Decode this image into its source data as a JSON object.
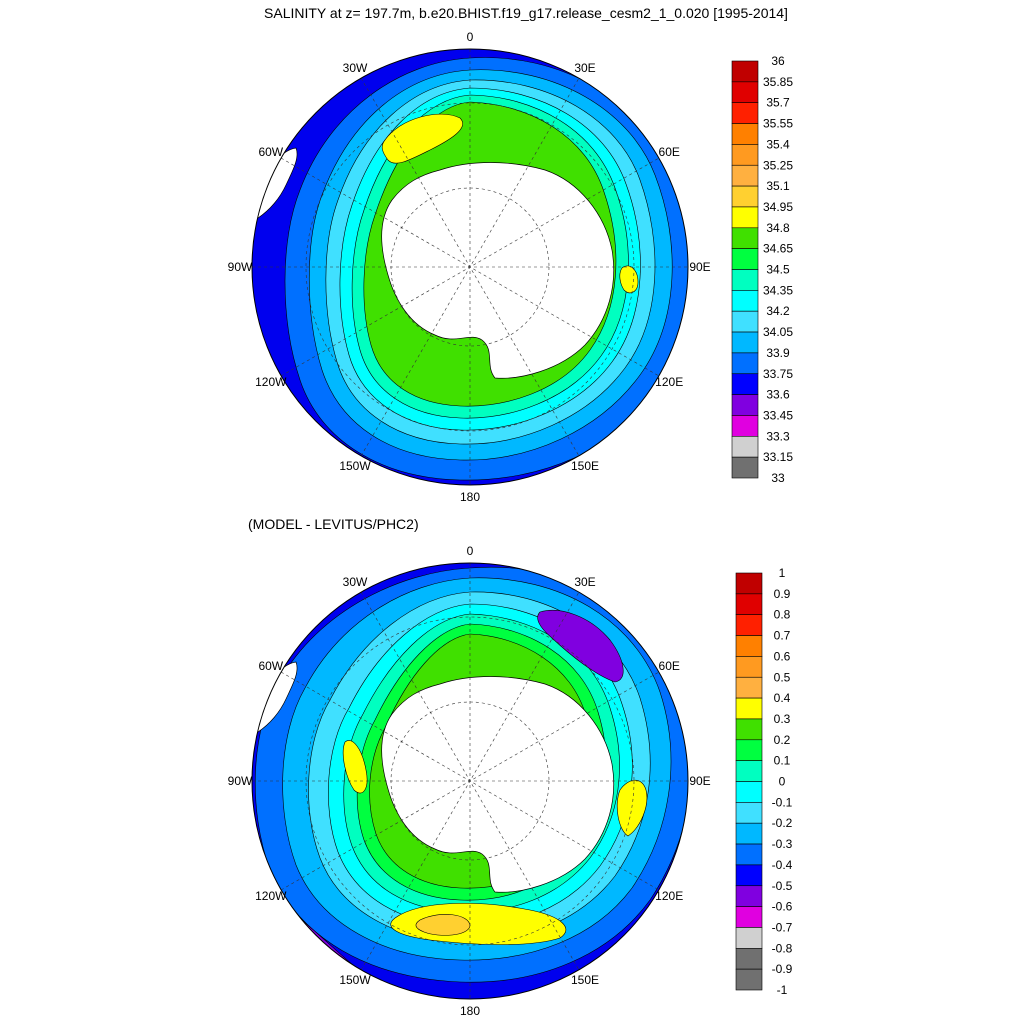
{
  "panels": [
    {
      "id": "top",
      "title": "SALINITY at z= 197.7m, b.e20.BHIST.f19_g17.release_cesm2_1_0.020 [1995-2014]",
      "longitude_labels": [
        {
          "text": "0",
          "lon": 0
        },
        {
          "text": "30E",
          "lon": 30
        },
        {
          "text": "60E",
          "lon": 60
        },
        {
          "text": "90E",
          "lon": 90
        },
        {
          "text": "120E",
          "lon": 120
        },
        {
          "text": "150E",
          "lon": 150
        },
        {
          "text": "180",
          "lon": 180
        },
        {
          "text": "150W",
          "lon": -150
        },
        {
          "text": "120W",
          "lon": -120
        },
        {
          "text": "90W",
          "lon": -90
        },
        {
          "text": "60W",
          "lon": -60
        },
        {
          "text": "30W",
          "lon": -30
        }
      ],
      "colorbar": {
        "labels": [
          "36",
          "35.85",
          "35.7",
          "35.55",
          "35.4",
          "35.25",
          "35.1",
          "34.95",
          "34.8",
          "34.65",
          "34.5",
          "34.35",
          "34.2",
          "34.05",
          "33.9",
          "33.75",
          "33.6",
          "33.45",
          "33.3",
          "33.15",
          "33"
        ],
        "colors": [
          "#c00000",
          "#e00000",
          "#ff2000",
          "#ff8000",
          "#ff9a20",
          "#ffb040",
          "#ffd030",
          "#ffff00",
          "#40e000",
          "#00ff40",
          "#00ffc0",
          "#00ffff",
          "#40e0ff",
          "#00b8ff",
          "#0070ff",
          "#0000ff",
          "#8000e0",
          "#e000e0",
          "#d0d0d0",
          "#707070"
        ]
      }
    },
    {
      "id": "bottom",
      "title": "(MODEL - LEVITUS/PHC2)",
      "longitude_labels": [
        {
          "text": "0",
          "lon": 0
        },
        {
          "text": "30E",
          "lon": 30
        },
        {
          "text": "60E",
          "lon": 60
        },
        {
          "text": "90E",
          "lon": 90
        },
        {
          "text": "120E",
          "lon": 120
        },
        {
          "text": "150E",
          "lon": 150
        },
        {
          "text": "180",
          "lon": 180
        },
        {
          "text": "150W",
          "lon": -150
        },
        {
          "text": "120W",
          "lon": -120
        },
        {
          "text": "90W",
          "lon": -90
        },
        {
          "text": "60W",
          "lon": -60
        },
        {
          "text": "30W",
          "lon": -30
        }
      ],
      "colorbar": {
        "labels": [
          "1",
          "0.9",
          "0.8",
          "0.7",
          "0.6",
          "0.5",
          "0.4",
          "0.3",
          "0.2",
          "0.1",
          "0",
          "-0.1",
          "-0.2",
          "-0.3",
          "-0.4",
          "-0.5",
          "-0.6",
          "-0.7",
          "-0.8",
          "-0.9",
          "-1"
        ],
        "colors": [
          "#c00000",
          "#e00000",
          "#ff2000",
          "#ff8000",
          "#ff9a20",
          "#ffb040",
          "#ffff00",
          "#40e000",
          "#00ff40",
          "#00ffc0",
          "#00ffff",
          "#40e0ff",
          "#00b8ff",
          "#0070ff",
          "#0000ff",
          "#8000e0",
          "#e000e0",
          "#d0d0d0",
          "#707070",
          "#707070"
        ]
      }
    }
  ]
}
